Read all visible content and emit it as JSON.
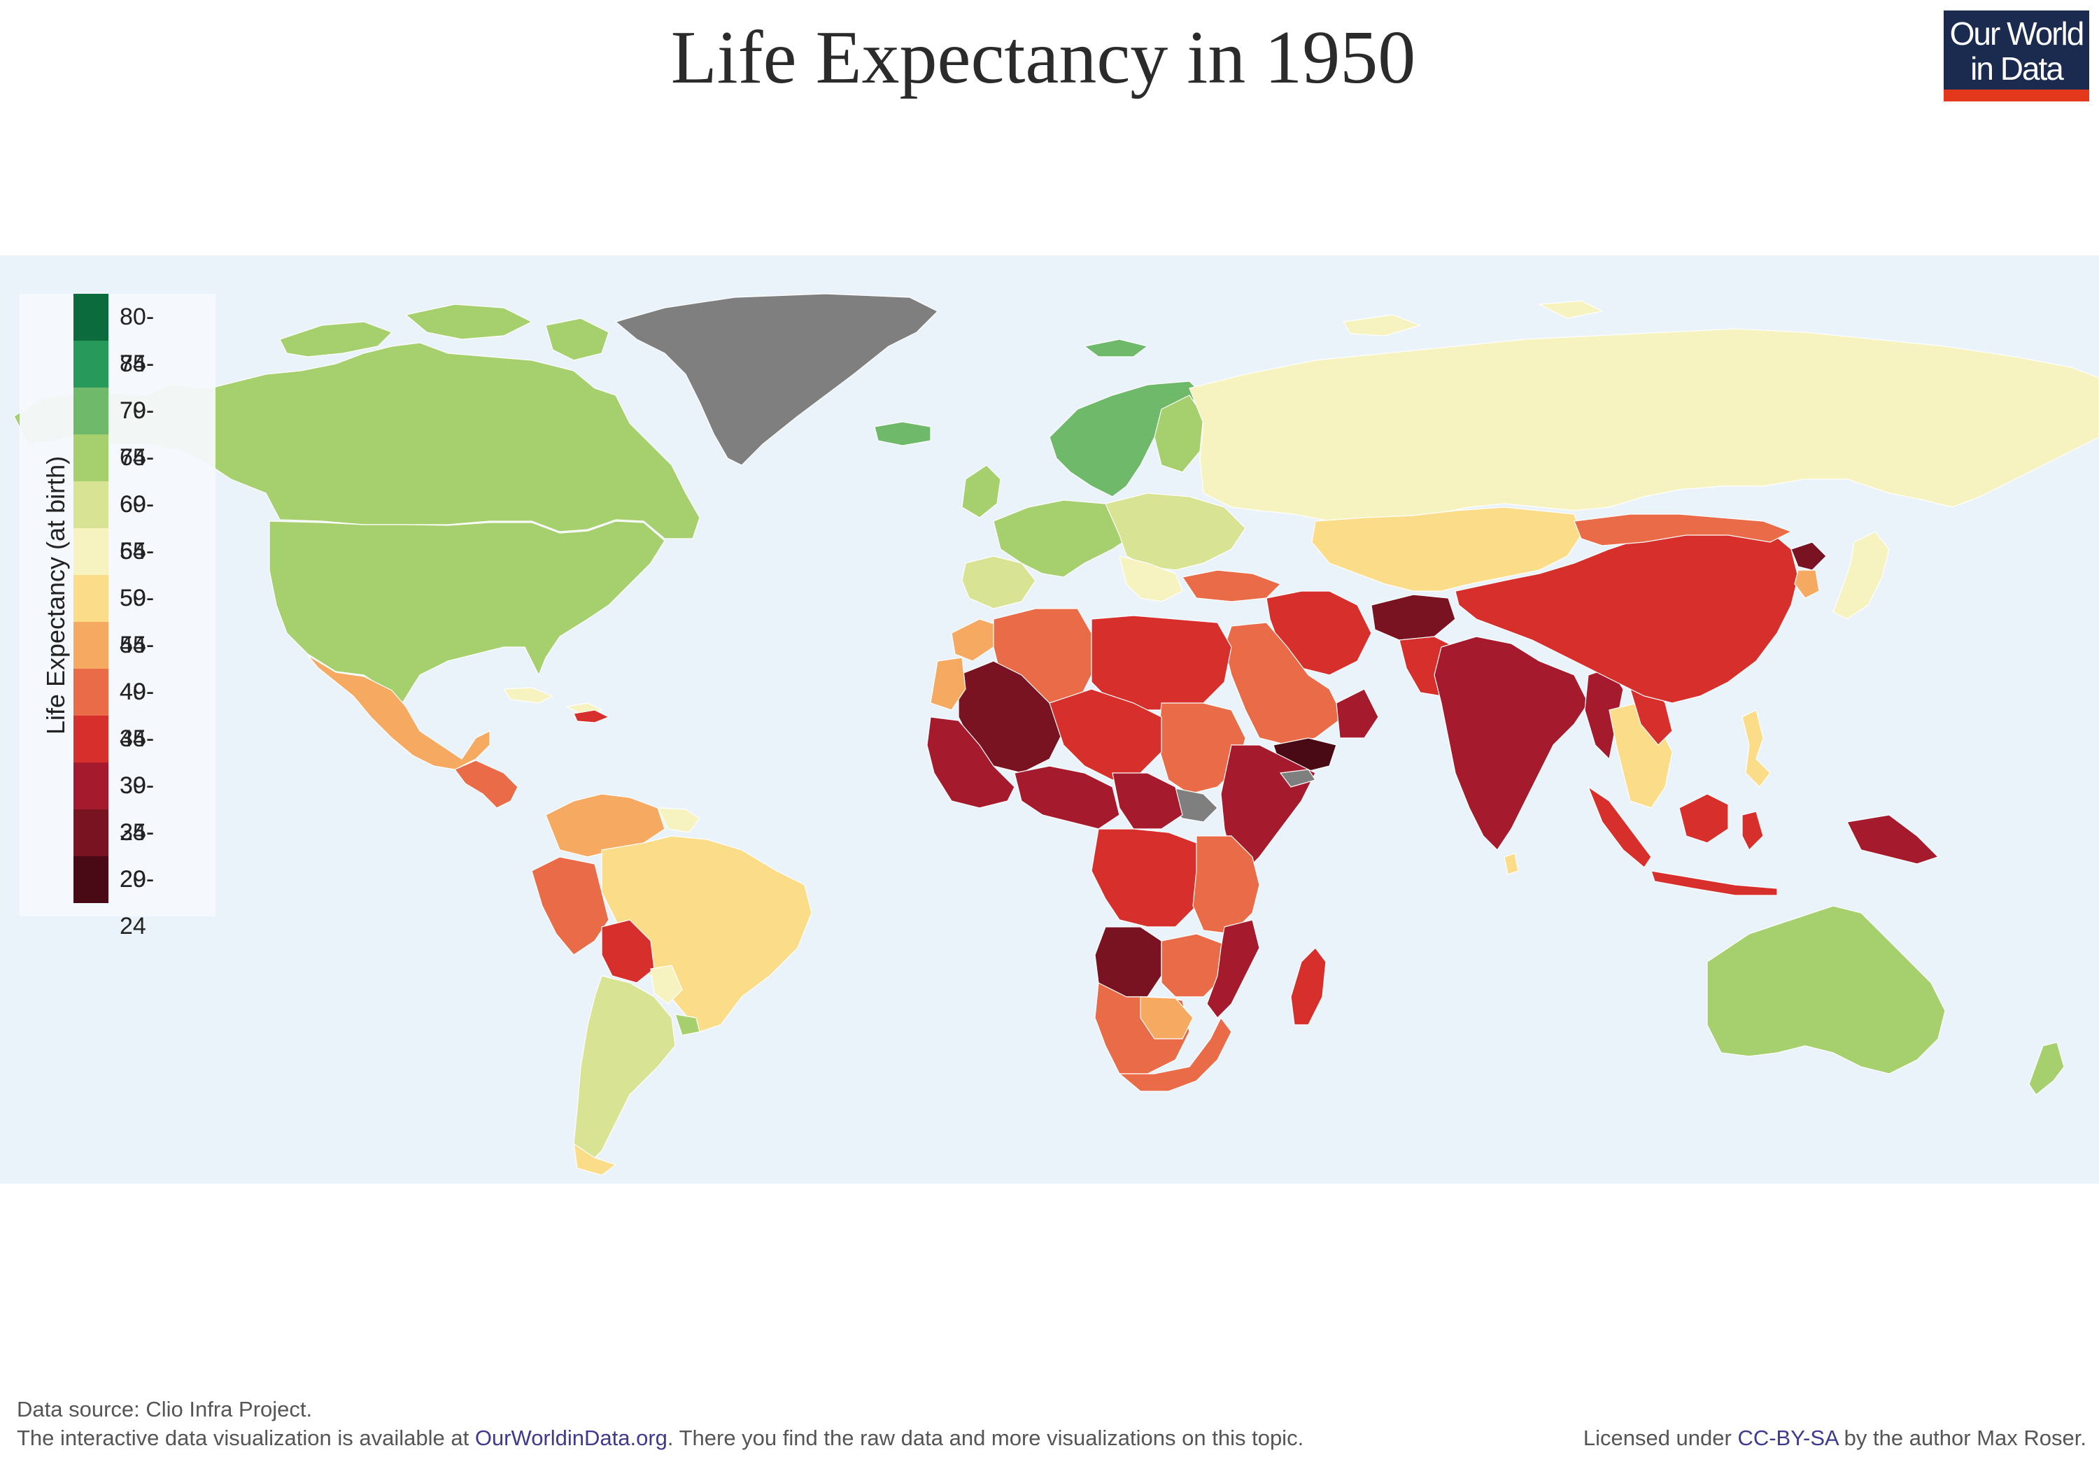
{
  "header": {
    "title": "Life Expectancy in 1950",
    "logo_text_line1": "Our World",
    "logo_text_line2": "in Data"
  },
  "legend": {
    "axis_label": "Life Expectancy (at birth)",
    "bins": [
      {
        "label": "80-84",
        "color": "#0b6b3d"
      },
      {
        "label": "75-79",
        "color": "#27995a"
      },
      {
        "label": "70-74",
        "color": "#6fba6a"
      },
      {
        "label": "65-69",
        "color": "#a6cf6e"
      },
      {
        "label": "60-64",
        "color": "#d8e394"
      },
      {
        "label": "55-59",
        "color": "#f7f3c0"
      },
      {
        "label": "50-54",
        "color": "#fbdd89"
      },
      {
        "label": "45-49",
        "color": "#f6a961"
      },
      {
        "label": "40-44",
        "color": "#ea6b47"
      },
      {
        "label": "35-39",
        "color": "#d7302c"
      },
      {
        "label": "30-34",
        "color": "#a51a2c"
      },
      {
        "label": "25-29",
        "color": "#7a1321"
      },
      {
        "label": "20-24",
        "color": "#4a0a15"
      }
    ],
    "no_data_color": "#7f7f7f"
  },
  "map_colors": {
    "ocean": "#eaf2fa"
  },
  "footer": {
    "source": "Data source: Clio Infra Project.",
    "interactive_prefix": "The interactive data visualization is available at ",
    "interactive_link": "OurWorldinData.org",
    "interactive_suffix": ". There you find the raw data and more visualizations on this topic.",
    "license_prefix": "Licensed under ",
    "license_link": "CC-BY-SA",
    "license_suffix": " by the author Max Roser."
  }
}
